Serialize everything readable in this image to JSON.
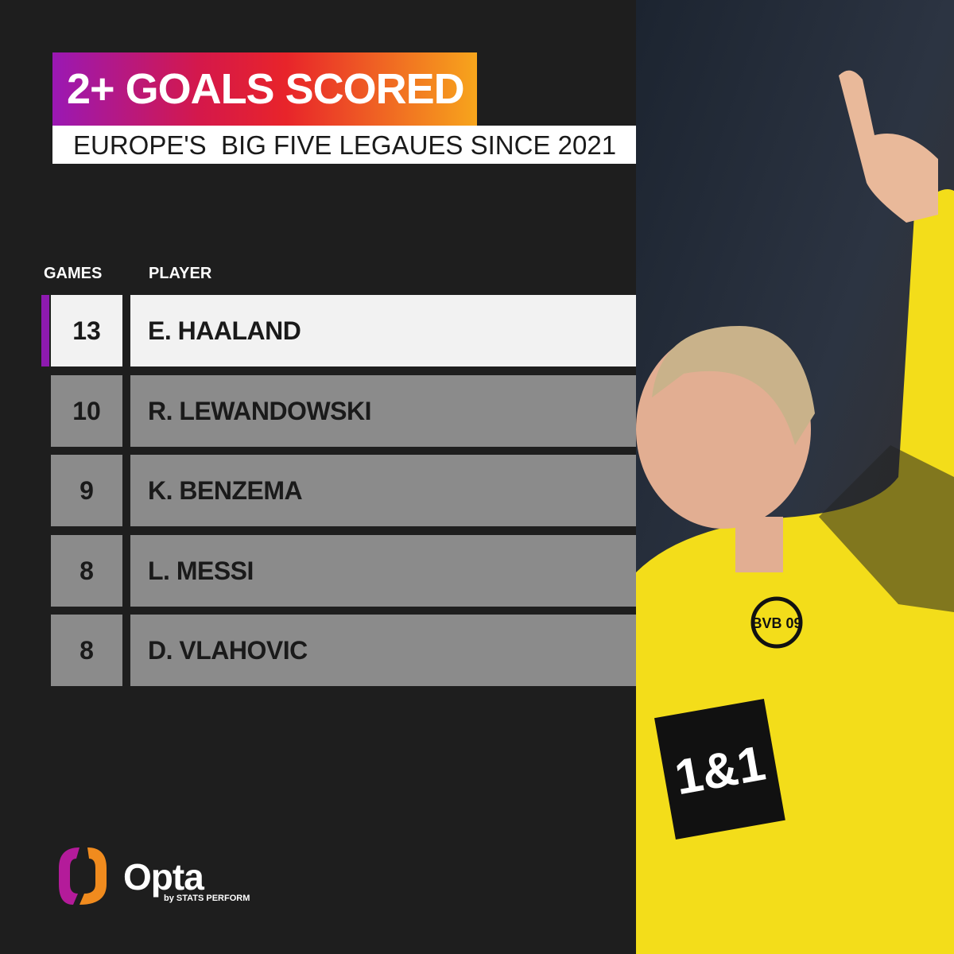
{
  "title": "2+ GOALS SCORED",
  "subtitle": "EUROPE'S  BIG FIVE LEGAUES SINCE 2021",
  "columns": {
    "games": "GAMES",
    "player": "PLAYER"
  },
  "rows": [
    {
      "games": "13",
      "player": "E. HAALAND"
    },
    {
      "games": "10",
      "player": "R. LEWANDOWSKI"
    },
    {
      "games": "9",
      "player": "K. BENZEMA"
    },
    {
      "games": "8",
      "player": "L. MESSI"
    },
    {
      "games": "8",
      "player": "D. VLAHOVIC"
    }
  ],
  "brand": {
    "name": "Opta",
    "byline": "by STATS PERFORM",
    "accent": "#8e1ab0"
  },
  "photo": {
    "shirt_sponsor": "1&1",
    "badge": "BVB 09"
  }
}
